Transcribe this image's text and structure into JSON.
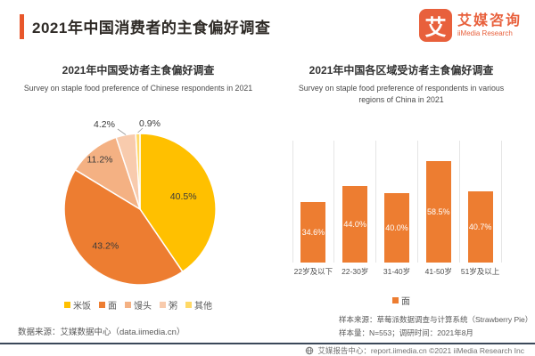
{
  "header": {
    "accent_color": "#E8572B",
    "title": "2021年中国消费者的主食偏好调查",
    "logo": {
      "mark": "艾",
      "company_cn": "艾媒咨询",
      "company_en": "iiMedia Research",
      "color": "#E8603C"
    }
  },
  "left_panel": {
    "title": "2021年中国受访者主食偏好调查",
    "subtitle": "Survey on staple food preference of Chinese respondents in 2021",
    "source_note": "数据来源：艾媒数据中心（data.iimedia.cn）"
  },
  "right_panel": {
    "title": "2021年中国各区域受访者主食偏好调查",
    "subtitle": "Survey on staple food preference of respondents in various regions of China in 2021",
    "sample_source": "样本来源：草莓派数据调查与计算系统（Strawberry Pie）",
    "sample_info": "样本量：N=553；调研时间：2021年8月"
  },
  "chart_data": [
    {
      "type": "pie",
      "title": "2021年中国受访者主食偏好调查",
      "subtitle": "Survey on staple food preference of Chinese respondents in 2021",
      "labels": [
        "米饭",
        "面",
        "馒头",
        "粥",
        "其他"
      ],
      "values": [
        40.5,
        43.2,
        11.2,
        4.2,
        0.9
      ],
      "unit": "%",
      "colors": [
        "#FFC000",
        "#ED7D31",
        "#F4B183",
        "#F8CBAD",
        "#FFD966"
      ],
      "legend_position": "bottom",
      "label_color": "#3A3A3A"
    },
    {
      "type": "bar",
      "title": "2021年中国各区域受访者主食偏好调查",
      "subtitle": "Survey on staple food preference of respondents in various regions of China in 2021",
      "categories": [
        "22岁及以下",
        "22-30岁",
        "31-40岁",
        "41-50岁",
        "51岁及以上"
      ],
      "series": [
        {
          "name": "面",
          "values": [
            34.6,
            44.0,
            40.0,
            58.5,
            40.7
          ]
        }
      ],
      "unit": "%",
      "ylim": [
        0,
        70
      ],
      "grid": "vertical-lines",
      "bar_color": "#ED7D31",
      "gridline_color": "#E5E5E5",
      "value_label_color": "#ffffff",
      "legend_position": "bottom"
    }
  ],
  "footer": {
    "line_color": "#3B4859",
    "text": "艾媒报告中心：report.iimedia.cn ©2021 iiMedia Research Inc"
  }
}
